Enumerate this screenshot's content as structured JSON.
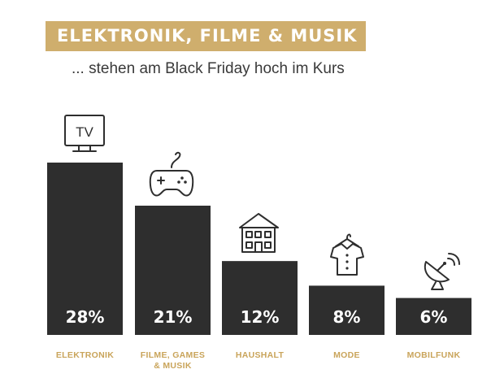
{
  "title": "ELEKTRONIK, FILME & MUSIK ...",
  "subtitle": "... stehen am Black Friday hoch im Kurs",
  "colors": {
    "banner": "#cfae6d",
    "bar": "#2e2e2e",
    "category_text": "#c9a45a",
    "value_text": "#ffffff"
  },
  "icons": [
    "tv-icon",
    "gamepad-icon",
    "house-icon",
    "shirt-on-hanger-icon",
    "satellite-dish-icon"
  ],
  "tv_icon_text": "TV",
  "chart_data": {
    "type": "bar",
    "title": "ELEKTRONIK, FILME & MUSIK ...",
    "subtitle": "... stehen am Black Friday hoch im Kurs",
    "categories": [
      "ELEKTRONIK",
      "FILME, GAMES & MUSIK",
      "HAUSHALT",
      "MODE",
      "MOBILFUNK"
    ],
    "category_lines": [
      [
        "ELEKTRONIK"
      ],
      [
        "FILME, GAMES",
        "& MUSIK"
      ],
      [
        "HAUSHALT"
      ],
      [
        "MODE"
      ],
      [
        "MOBILFUNK"
      ]
    ],
    "values": [
      28,
      21,
      12,
      8,
      6
    ],
    "value_labels": [
      "28%",
      "21%",
      "12%",
      "8%",
      "6%"
    ],
    "unit": "%",
    "ylim": [
      0,
      28
    ],
    "grid": false,
    "legend": "none"
  }
}
